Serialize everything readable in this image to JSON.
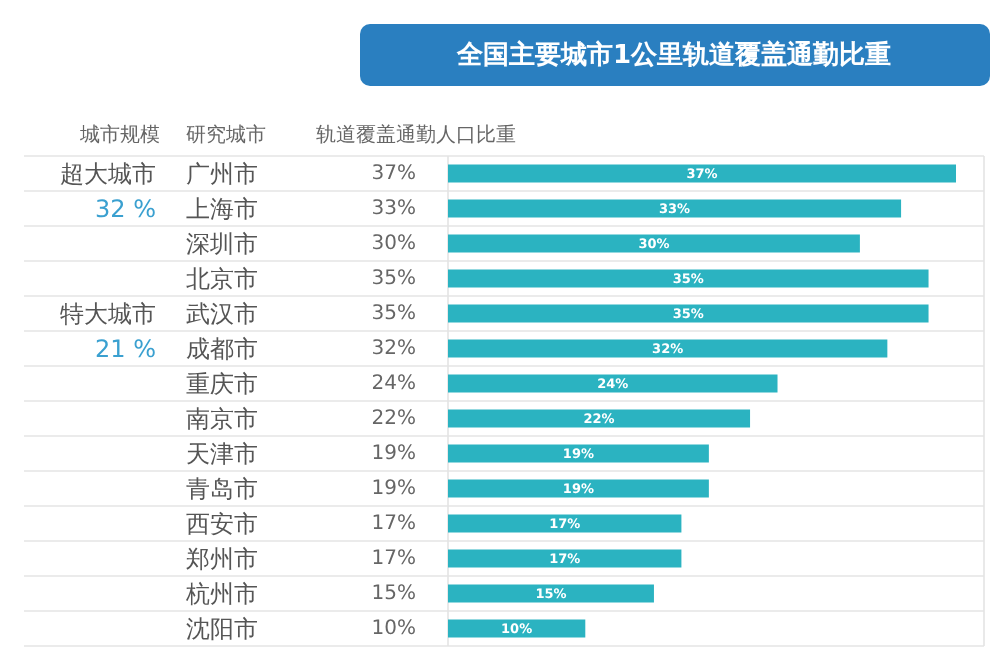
{
  "chart_data": {
    "type": "bar",
    "orientation": "horizontal",
    "title": "全国主要城市1公里轨道覆盖通勤比重",
    "ylabel": "研究城市",
    "xlabel": "轨道覆盖通勤人口比重",
    "categories": [
      "广州市",
      "上海市",
      "深圳市",
      "北京市",
      "武汉市",
      "成都市",
      "重庆市",
      "南京市",
      "天津市",
      "青岛市",
      "西安市",
      "郑州市",
      "杭州市",
      "沈阳市"
    ],
    "values": [
      37,
      33,
      30,
      35,
      35,
      32,
      24,
      22,
      19,
      19,
      17,
      17,
      15,
      10
    ],
    "value_labels": [
      "37%",
      "33%",
      "30%",
      "35%",
      "35%",
      "32%",
      "24%",
      "22%",
      "19%",
      "19%",
      "17%",
      "17%",
      "15%",
      "10%"
    ],
    "color": "#2bb3c1",
    "grid": "y",
    "annotations": [
      "城市规模",
      "超大城市",
      "32 %",
      "特大城市",
      "21 %"
    ]
  }
}
